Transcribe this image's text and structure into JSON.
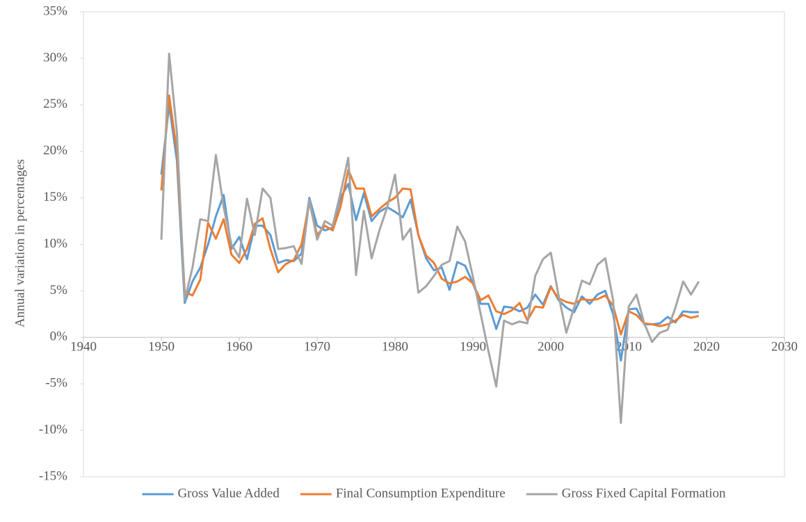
{
  "chart_data": {
    "type": "line",
    "y_label": "Annual variation in percentages",
    "x": [
      1950,
      1951,
      1952,
      1953,
      1954,
      1955,
      1956,
      1957,
      1958,
      1959,
      1960,
      1961,
      1962,
      1963,
      1964,
      1965,
      1966,
      1967,
      1968,
      1969,
      1970,
      1971,
      1972,
      1973,
      1974,
      1975,
      1976,
      1977,
      1978,
      1979,
      1980,
      1981,
      1982,
      1983,
      1984,
      1985,
      1986,
      1987,
      1988,
      1989,
      1990,
      1991,
      1992,
      1993,
      1994,
      1995,
      1996,
      1997,
      1998,
      1999,
      2000,
      2001,
      2002,
      2003,
      2004,
      2005,
      2006,
      2007,
      2008,
      2009,
      2010,
      2011,
      2012,
      2013,
      2014,
      2015,
      2016,
      2017,
      2018,
      2019
    ],
    "series": [
      {
        "name": "Gross Value Added",
        "color": "#5b9bd5",
        "values": [
          17.5,
          25,
          19,
          3.7,
          6,
          7.5,
          10,
          13,
          15.3,
          9.5,
          10.8,
          8.4,
          12,
          12,
          11,
          8,
          8.3,
          8.2,
          9,
          15,
          12,
          11.5,
          11.8,
          15,
          16.5,
          12.6,
          15.5,
          12.5,
          13.5,
          14,
          13.5,
          12.9,
          14.8,
          11,
          8.5,
          7.2,
          7.5,
          5.1,
          8.1,
          7.7,
          5.8,
          3.6,
          3.6,
          0.9,
          3.3,
          3.2,
          2.8,
          3.2,
          4.6,
          3.5,
          5.5,
          4,
          3.2,
          2.7,
          4.4,
          3.6,
          4.6,
          5,
          2.5,
          -2.5,
          3,
          3.1,
          1.4,
          1.4,
          1.5,
          2.2,
          1.6,
          2.8,
          2.7,
          2.7
        ]
      },
      {
        "name": "Final Consumption Expenditure",
        "color": "#ed7d31",
        "values": [
          15.8,
          26,
          20,
          4.9,
          4.5,
          6.2,
          12.3,
          10.6,
          12.7,
          8.9,
          8,
          9.5,
          12.2,
          12.8,
          9.5,
          7,
          7.9,
          8.3,
          10,
          14.5,
          11,
          12,
          11.5,
          14,
          18,
          16,
          16,
          13,
          13.8,
          14.5,
          15,
          16,
          15.9,
          11,
          8.8,
          8,
          6.3,
          5.8,
          6,
          6.5,
          5.8,
          4,
          4.5,
          2.8,
          2.5,
          2.9,
          3.7,
          1.8,
          3.3,
          3.2,
          5.4,
          4.2,
          3.8,
          3.6,
          4.1,
          4,
          4.1,
          4.5,
          3.4,
          0.3,
          2.8,
          2.4,
          1.5,
          1.4,
          1.2,
          1.4,
          1.8,
          2.4,
          2.1,
          2.3
        ]
      },
      {
        "name": "Gross Fixed Capital Formation",
        "color": "#a5a5a5",
        "values": [
          10.5,
          30.5,
          22,
          4,
          7.5,
          12.7,
          12.5,
          19.6,
          14,
          10,
          8.6,
          14.9,
          11,
          16,
          15,
          9.5,
          9.6,
          9.8,
          7.9,
          14.8,
          10.5,
          12.5,
          12,
          15.5,
          19.3,
          6.7,
          13.6,
          8.5,
          11.5,
          14,
          17.5,
          10.5,
          11.7,
          4.8,
          5.5,
          6.6,
          7.8,
          8.2,
          11.9,
          10.3,
          6.5,
          2.5,
          -1.5,
          -5.3,
          1.8,
          1.4,
          1.7,
          1.5,
          6.6,
          8.4,
          9.1,
          4.5,
          0.5,
          3.2,
          6.1,
          5.7,
          7.8,
          8.5,
          4,
          -9.2,
          3.3,
          4.6,
          1.5,
          -0.5,
          0.5,
          0.8,
          3.2,
          6,
          4.6,
          6
        ]
      }
    ],
    "xlim": [
      1940,
      2030
    ],
    "xticks": [
      1940,
      1950,
      1960,
      1970,
      1980,
      1990,
      2000,
      2010,
      2020,
      2030
    ],
    "ylim": [
      -15,
      35
    ],
    "yticks": [
      {
        "value": -15,
        "label": "-15%"
      },
      {
        "value": -10,
        "label": "-10%"
      },
      {
        "value": -5,
        "label": "-5%"
      },
      {
        "value": 0,
        "label": "0%"
      },
      {
        "value": 5,
        "label": "5%"
      },
      {
        "value": 10,
        "label": "10%"
      },
      {
        "value": 15,
        "label": "15%"
      },
      {
        "value": 20,
        "label": "20%"
      },
      {
        "value": 25,
        "label": "25%"
      },
      {
        "value": 30,
        "label": "30%"
      },
      {
        "value": 35,
        "label": "35%"
      }
    ],
    "grid": false,
    "legend": "bottom"
  }
}
